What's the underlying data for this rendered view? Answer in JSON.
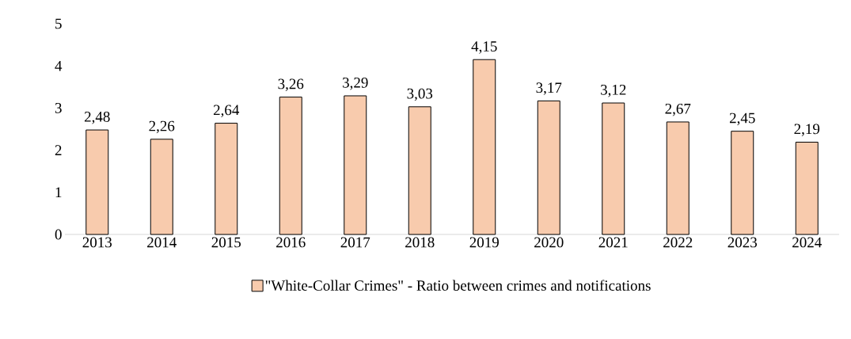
{
  "chart_data": {
    "type": "bar",
    "categories": [
      "2013",
      "2014",
      "2015",
      "2016",
      "2017",
      "2018",
      "2019",
      "2020",
      "2021",
      "2022",
      "2023",
      "2024"
    ],
    "series": [
      {
        "name": "\"White-Collar Crimes\" - Ratio between crimes and notifications",
        "color": "#f8cbad",
        "values": [
          2.48,
          2.26,
          2.64,
          3.26,
          3.29,
          3.03,
          4.15,
          3.17,
          3.12,
          2.67,
          2.45,
          2.19
        ],
        "value_labels": [
          "2,48",
          "2,26",
          "2,64",
          "3,26",
          "3,29",
          "3,03",
          "4,15",
          "3,17",
          "3,12",
          "2,67",
          "2,45",
          "2,19"
        ]
      }
    ],
    "ylim": [
      0,
      5
    ],
    "yticks": [
      0,
      1,
      2,
      3,
      4,
      5
    ],
    "grid": false,
    "legend": "bottom"
  }
}
